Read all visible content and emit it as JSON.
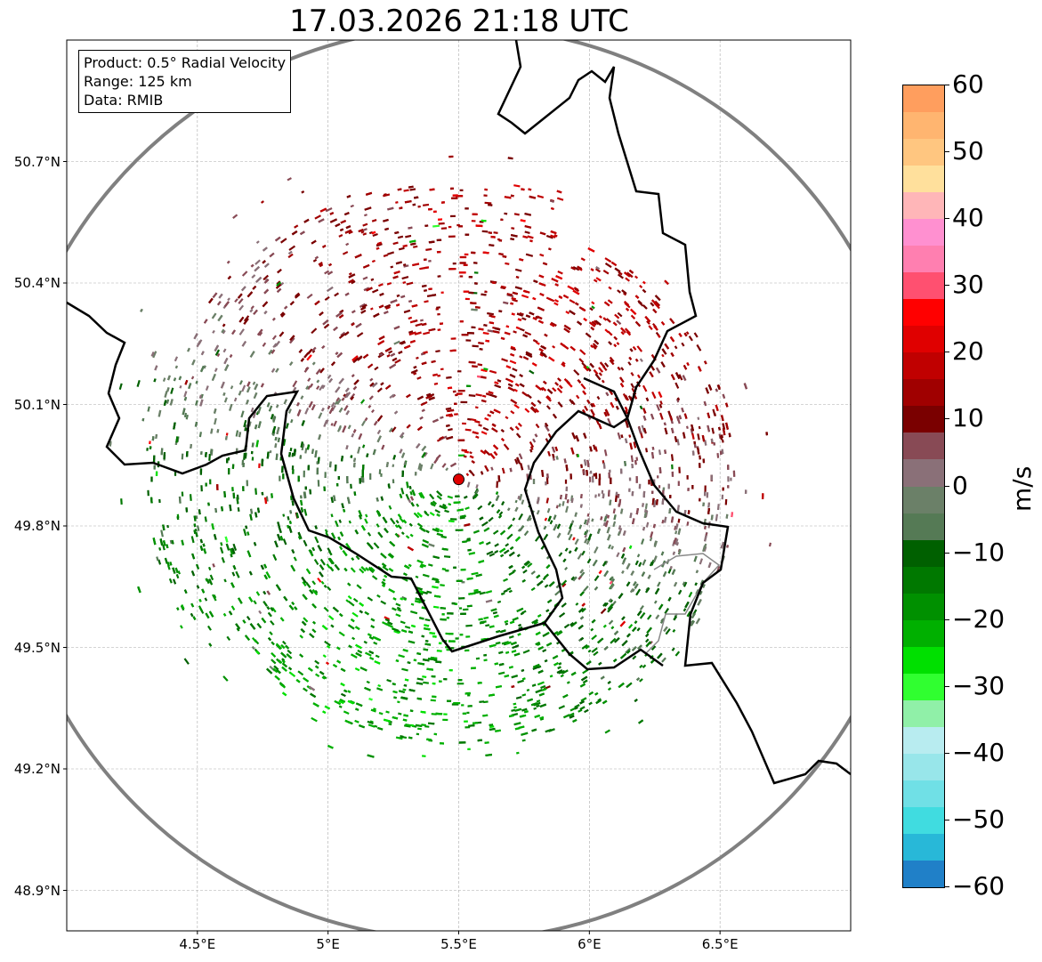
{
  "title": "17.03.2026 21:18 UTC",
  "info": {
    "product": "Product: 0.5° Radial Velocity",
    "range": "Range: 125 km",
    "data": "Data: RMIB"
  },
  "map": {
    "lon_range": [
      4.0,
      7.0
    ],
    "lat_range": [
      48.8,
      51.0
    ],
    "radar_site": {
      "lon": 5.5,
      "lat": 49.915,
      "color": "#e00000"
    },
    "range_km": 125,
    "lat_ticks": [
      {
        "value": 50.7,
        "label": "50.7°N"
      },
      {
        "value": 50.4,
        "label": "50.4°N"
      },
      {
        "value": 50.1,
        "label": "50.1°N"
      },
      {
        "value": 49.8,
        "label": "49.8°N"
      },
      {
        "value": 49.5,
        "label": "49.5°N"
      },
      {
        "value": 49.2,
        "label": "49.2°N"
      },
      {
        "value": 48.9,
        "label": "48.9°N"
      }
    ],
    "lon_ticks": [
      {
        "value": 4.5,
        "label": "4.5°E"
      },
      {
        "value": 5.0,
        "label": "5°E"
      },
      {
        "value": 5.5,
        "label": "5.5°E"
      },
      {
        "value": 6.0,
        "label": "6°E"
      },
      {
        "value": 6.5,
        "label": "6.5°E"
      }
    ]
  },
  "colorbar": {
    "unit": "m/s",
    "range": [
      -60,
      60
    ],
    "ticks": [
      {
        "value": 60,
        "label": "60"
      },
      {
        "value": 50,
        "label": "50"
      },
      {
        "value": 40,
        "label": "40"
      },
      {
        "value": 30,
        "label": "30"
      },
      {
        "value": 20,
        "label": "20"
      },
      {
        "value": 10,
        "label": "10"
      },
      {
        "value": 0,
        "label": "0"
      },
      {
        "value": -10,
        "label": "−10"
      },
      {
        "value": -20,
        "label": "−20"
      },
      {
        "value": -30,
        "label": "−30"
      },
      {
        "value": -40,
        "label": "−40"
      },
      {
        "value": -50,
        "label": "−50"
      },
      {
        "value": -60,
        "label": "−60"
      }
    ],
    "colors_top_to_bottom": [
      "#ff9e5e",
      "#ffb570",
      "#ffc680",
      "#ffe09c",
      "#ffb6b8",
      "#ff90d0",
      "#ff7fb0",
      "#ff5070",
      "#ff0000",
      "#e00000",
      "#c00000",
      "#a00000",
      "#7a0000",
      "#884a55",
      "#8a7078",
      "#6b8068",
      "#557a55",
      "#006000",
      "#007800",
      "#009000",
      "#00b000",
      "#00e000",
      "#30ff30",
      "#90f0a8",
      "#b8ecf0",
      "#98e6ea",
      "#70e0e6",
      "#40dce0",
      "#28b8d8",
      "#2080c8"
    ]
  }
}
